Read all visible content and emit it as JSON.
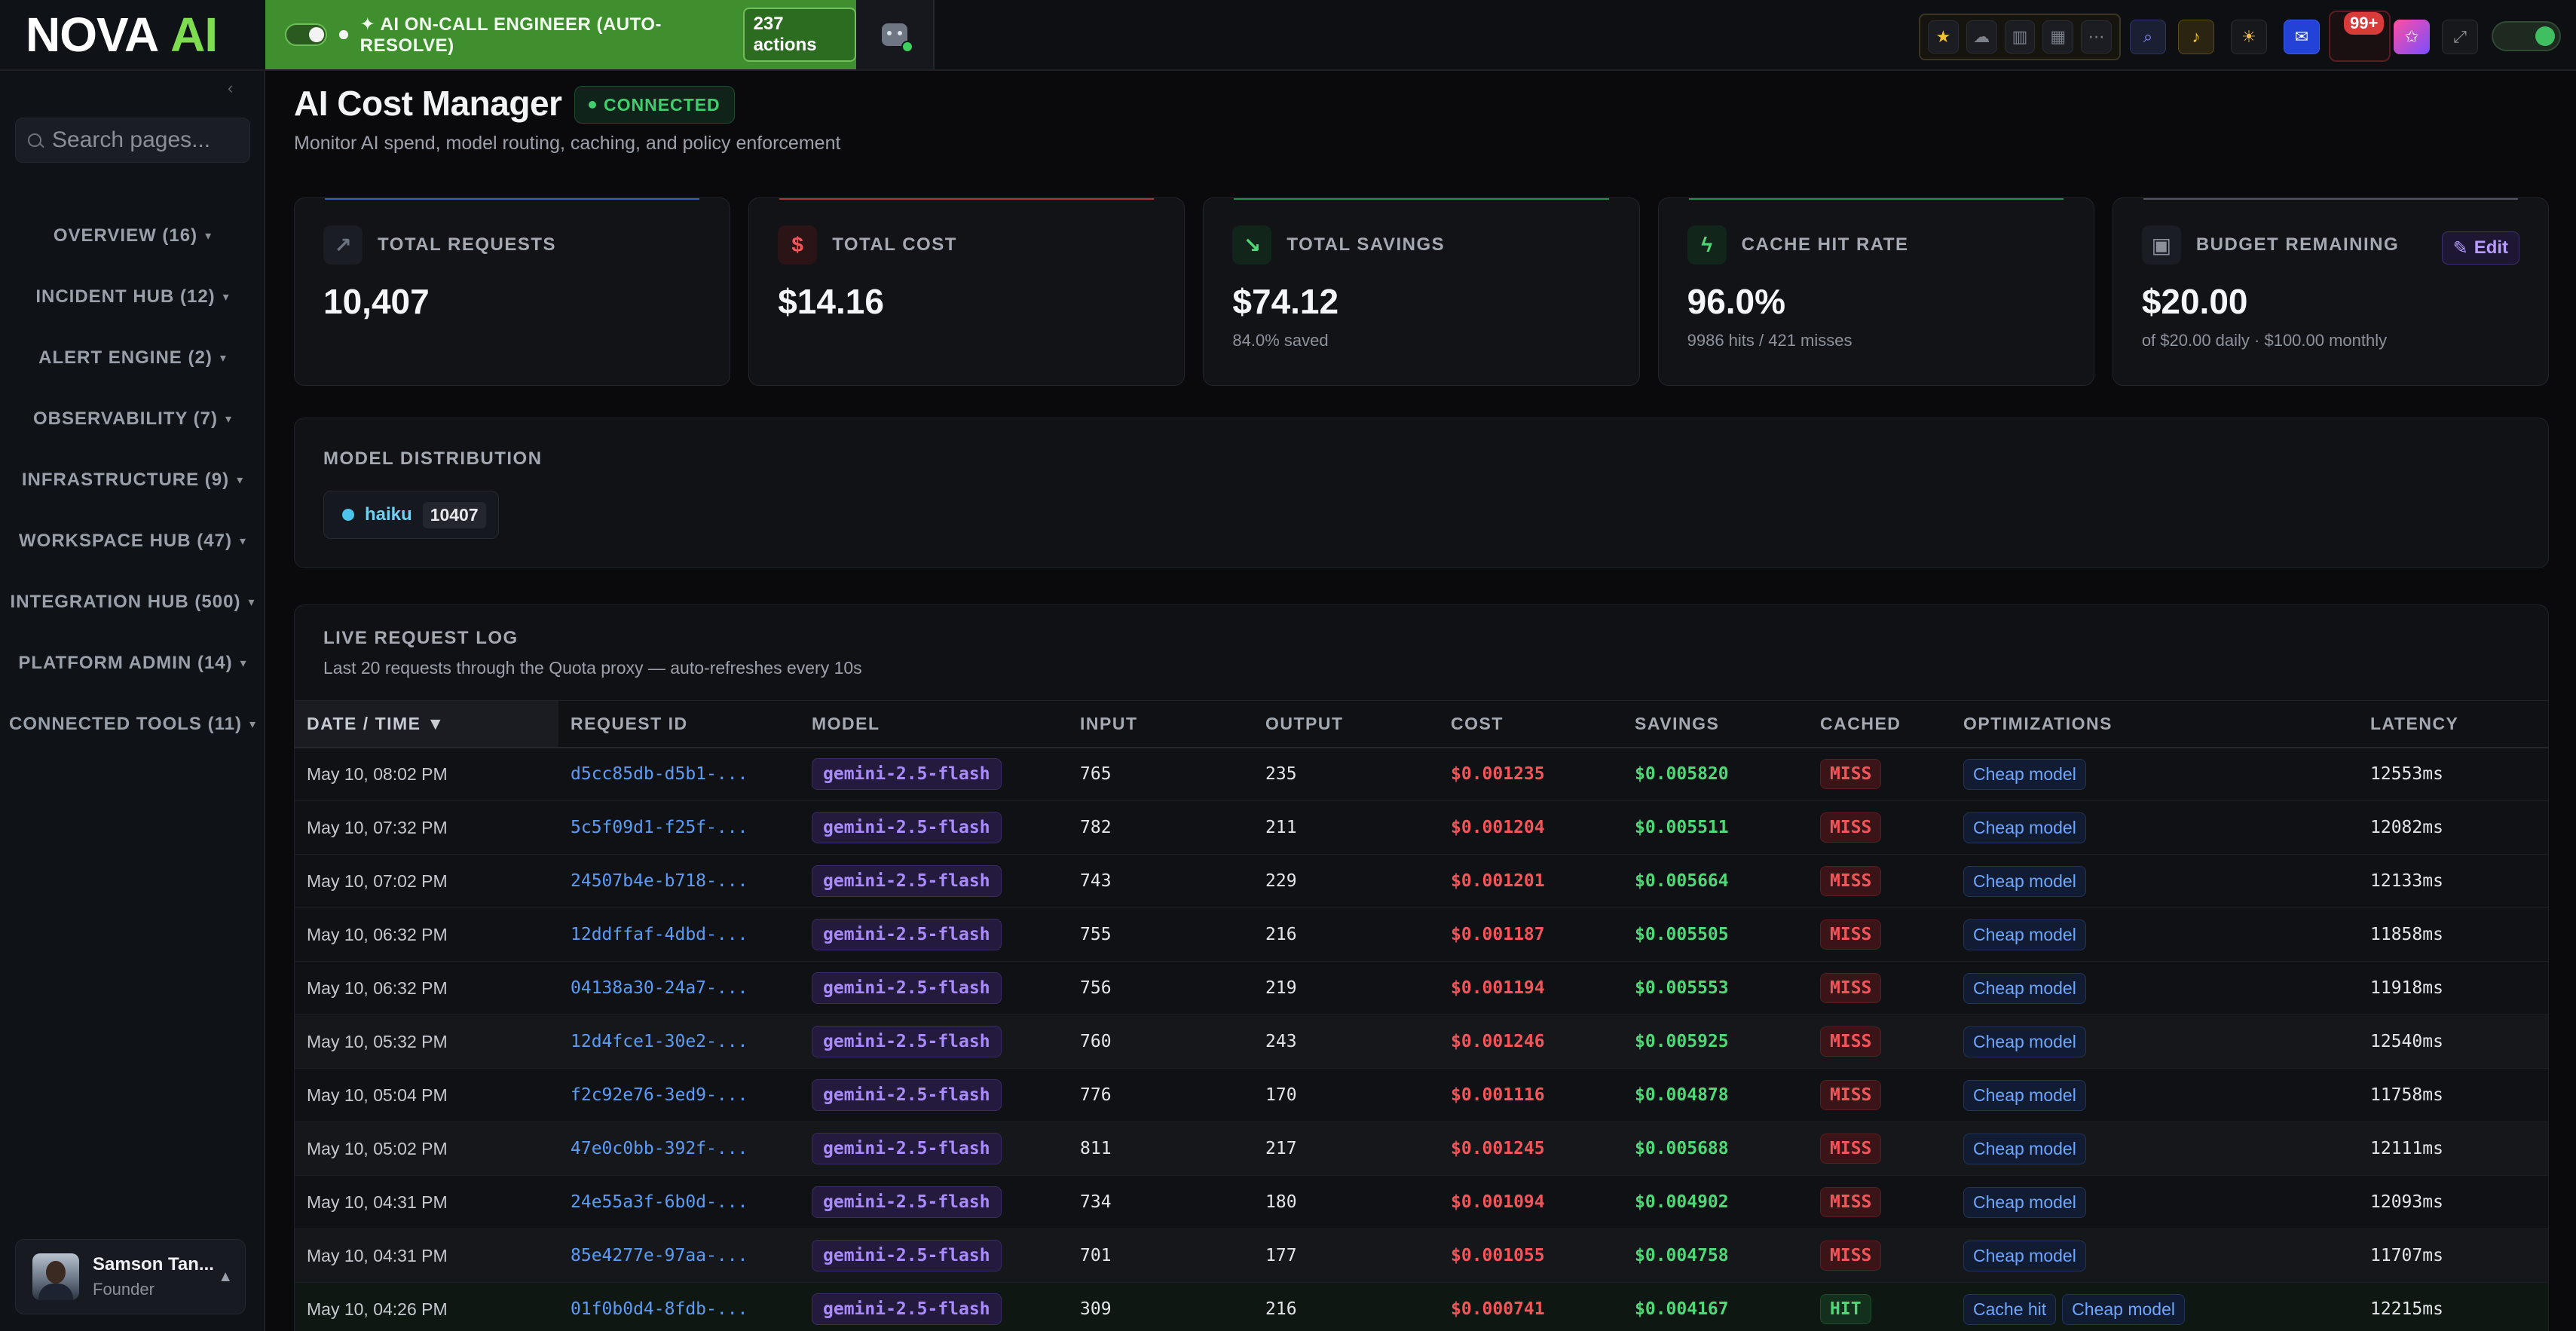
{
  "brand": {
    "word1": "NOVA",
    "word2": "AI"
  },
  "oncall": {
    "label": "✦ AI ON-CALL ENGINEER (AUTO-RESOLVE)",
    "actions": "237 actions"
  },
  "notifications": {
    "count": "99+"
  },
  "sidebar": {
    "search_placeholder": "Search pages...",
    "items": [
      {
        "label": "OVERVIEW (16)"
      },
      {
        "label": "INCIDENT HUB (12)"
      },
      {
        "label": "ALERT ENGINE (2)"
      },
      {
        "label": "OBSERVABILITY (7)"
      },
      {
        "label": "INFRASTRUCTURE (9)"
      },
      {
        "label": "WORKSPACE HUB (47)"
      },
      {
        "label": "INTEGRATION HUB (500)"
      },
      {
        "label": "PLATFORM ADMIN (14)"
      },
      {
        "label": "CONNECTED TOOLS (11)"
      }
    ],
    "user": {
      "name": "Samson Tan...",
      "role": "Founder"
    }
  },
  "header": {
    "title": "AI Cost Manager",
    "status": "CONNECTED",
    "subtitle": "Monitor AI spend, model routing, caching, and policy enforcement"
  },
  "kpis": [
    {
      "label": "TOTAL REQUESTS",
      "value": "10,407",
      "sub": "",
      "icon": "trend-up-icon",
      "accent": "#3b82f6"
    },
    {
      "label": "TOTAL COST",
      "value": "$14.16",
      "sub": "",
      "icon": "dollar-icon",
      "accent": "#ef4444"
    },
    {
      "label": "TOTAL SAVINGS",
      "value": "$74.12",
      "sub": "84.0% saved",
      "icon": "trend-down-icon",
      "accent": "#22c55e"
    },
    {
      "label": "CACHE HIT RATE",
      "value": "96.0%",
      "sub": "9986 hits / 421 misses",
      "icon": "bolt-icon",
      "accent": "#22c55e"
    },
    {
      "label": "BUDGET REMAINING",
      "value": "$20.00",
      "sub": "of $20.00 daily · $100.00 monthly",
      "icon": "briefcase-icon",
      "accent": "#6b7280",
      "edit_label": "Edit"
    }
  ],
  "distribution": {
    "title": "MODEL DISTRIBUTION",
    "models": [
      {
        "name": "haiku",
        "count": "10407"
      }
    ]
  },
  "log": {
    "title": "LIVE REQUEST LOG",
    "subtitle": "Last 20 requests through the Quota proxy — auto-refreshes every 10s",
    "columns": [
      "DATE / TIME ▼",
      "REQUEST ID",
      "MODEL",
      "INPUT",
      "OUTPUT",
      "COST",
      "SAVINGS",
      "CACHED",
      "OPTIMIZATIONS",
      "LATENCY"
    ],
    "rows": [
      {
        "date": "May 10, 08:02 PM",
        "id": "d5cc85db-d5b1-...",
        "model": "gemini-2.5-flash",
        "input": "765",
        "output": "235",
        "cost": "$0.001235",
        "savings": "$0.005820",
        "cached": "MISS",
        "opts": [
          "Cheap model"
        ],
        "latency": "12553ms"
      },
      {
        "date": "May 10, 07:32 PM",
        "id": "5c5f09d1-f25f-...",
        "model": "gemini-2.5-flash",
        "input": "782",
        "output": "211",
        "cost": "$0.001204",
        "savings": "$0.005511",
        "cached": "MISS",
        "opts": [
          "Cheap model"
        ],
        "latency": "12082ms"
      },
      {
        "date": "May 10, 07:02 PM",
        "id": "24507b4e-b718-...",
        "model": "gemini-2.5-flash",
        "input": "743",
        "output": "229",
        "cost": "$0.001201",
        "savings": "$0.005664",
        "cached": "MISS",
        "opts": [
          "Cheap model"
        ],
        "latency": "12133ms"
      },
      {
        "date": "May 10, 06:32 PM",
        "id": "12ddffaf-4dbd-...",
        "model": "gemini-2.5-flash",
        "input": "755",
        "output": "216",
        "cost": "$0.001187",
        "savings": "$0.005505",
        "cached": "MISS",
        "opts": [
          "Cheap model"
        ],
        "latency": "11858ms"
      },
      {
        "date": "May 10, 06:32 PM",
        "id": "04138a30-24a7-...",
        "model": "gemini-2.5-flash",
        "input": "756",
        "output": "219",
        "cost": "$0.001194",
        "savings": "$0.005553",
        "cached": "MISS",
        "opts": [
          "Cheap model"
        ],
        "latency": "11918ms"
      },
      {
        "date": "May 10, 05:32 PM",
        "id": "12d4fce1-30e2-...",
        "model": "gemini-2.5-flash",
        "input": "760",
        "output": "243",
        "cost": "$0.001246",
        "savings": "$0.005925",
        "cached": "MISS",
        "opts": [
          "Cheap model"
        ],
        "latency": "12540ms"
      },
      {
        "date": "May 10, 05:04 PM",
        "id": "f2c92e76-3ed9-...",
        "model": "gemini-2.5-flash",
        "input": "776",
        "output": "170",
        "cost": "$0.001116",
        "savings": "$0.004878",
        "cached": "MISS",
        "opts": [
          "Cheap model"
        ],
        "latency": "11758ms"
      },
      {
        "date": "May 10, 05:02 PM",
        "id": "47e0c0bb-392f-...",
        "model": "gemini-2.5-flash",
        "input": "811",
        "output": "217",
        "cost": "$0.001245",
        "savings": "$0.005688",
        "cached": "MISS",
        "opts": [
          "Cheap model"
        ],
        "latency": "12111ms"
      },
      {
        "date": "May 10, 04:31 PM",
        "id": "24e55a3f-6b0d-...",
        "model": "gemini-2.5-flash",
        "input": "734",
        "output": "180",
        "cost": "$0.001094",
        "savings": "$0.004902",
        "cached": "MISS",
        "opts": [
          "Cheap model"
        ],
        "latency": "12093ms"
      },
      {
        "date": "May 10, 04:31 PM",
        "id": "85e4277e-97aa-...",
        "model": "gemini-2.5-flash",
        "input": "701",
        "output": "177",
        "cost": "$0.001055",
        "savings": "$0.004758",
        "cached": "MISS",
        "opts": [
          "Cheap model"
        ],
        "latency": "11707ms"
      },
      {
        "date": "May 10, 04:26 PM",
        "id": "01f0b0d4-8fdb-...",
        "model": "gemini-2.5-flash",
        "input": "309",
        "output": "216",
        "cost": "$0.000741",
        "savings": "$0.004167",
        "cached": "HIT",
        "opts": [
          "Cache hit",
          "Cheap model"
        ],
        "latency": "12215ms"
      }
    ]
  }
}
